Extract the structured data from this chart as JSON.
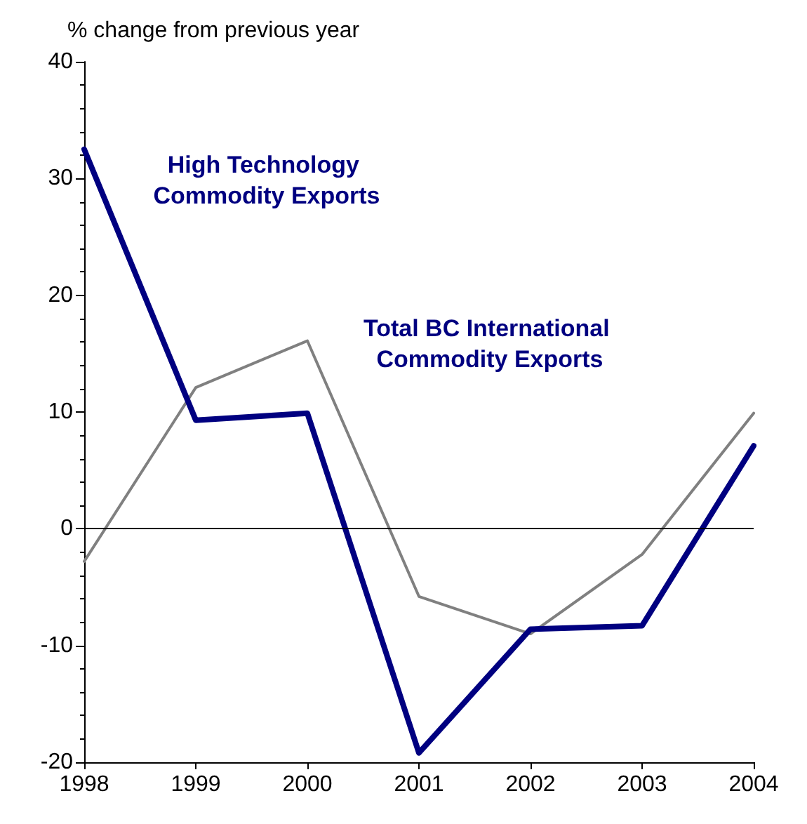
{
  "chart_data": {
    "type": "line",
    "ylabel": "% change from previous year",
    "x": [
      1998,
      1999,
      2000,
      2001,
      2002,
      2003,
      2004
    ],
    "xlim": [
      1998,
      2004
    ],
    "xticks": [
      1998,
      1999,
      2000,
      2001,
      2002,
      2003,
      2004
    ],
    "ylim": [
      -20,
      40
    ],
    "yticks": [
      -20,
      -10,
      0,
      10,
      20,
      30,
      40
    ],
    "grid": false,
    "marker": "none",
    "legend": false,
    "series": [
      {
        "name": "Total BC International Commodity Exports",
        "color": "#808080",
        "values": [
          -2.8,
          12.1,
          16.1,
          -5.8,
          -9.0,
          -2.2,
          9.9
        ]
      },
      {
        "name": "High Technology Commodity Exports",
        "color": "#000080",
        "values": [
          32.5,
          9.3,
          9.9,
          -19.2,
          -8.6,
          -8.3,
          7.1
        ]
      }
    ],
    "ref_lines": [
      {
        "axis": "y",
        "value": 0,
        "color": "#000000"
      }
    ]
  }
}
